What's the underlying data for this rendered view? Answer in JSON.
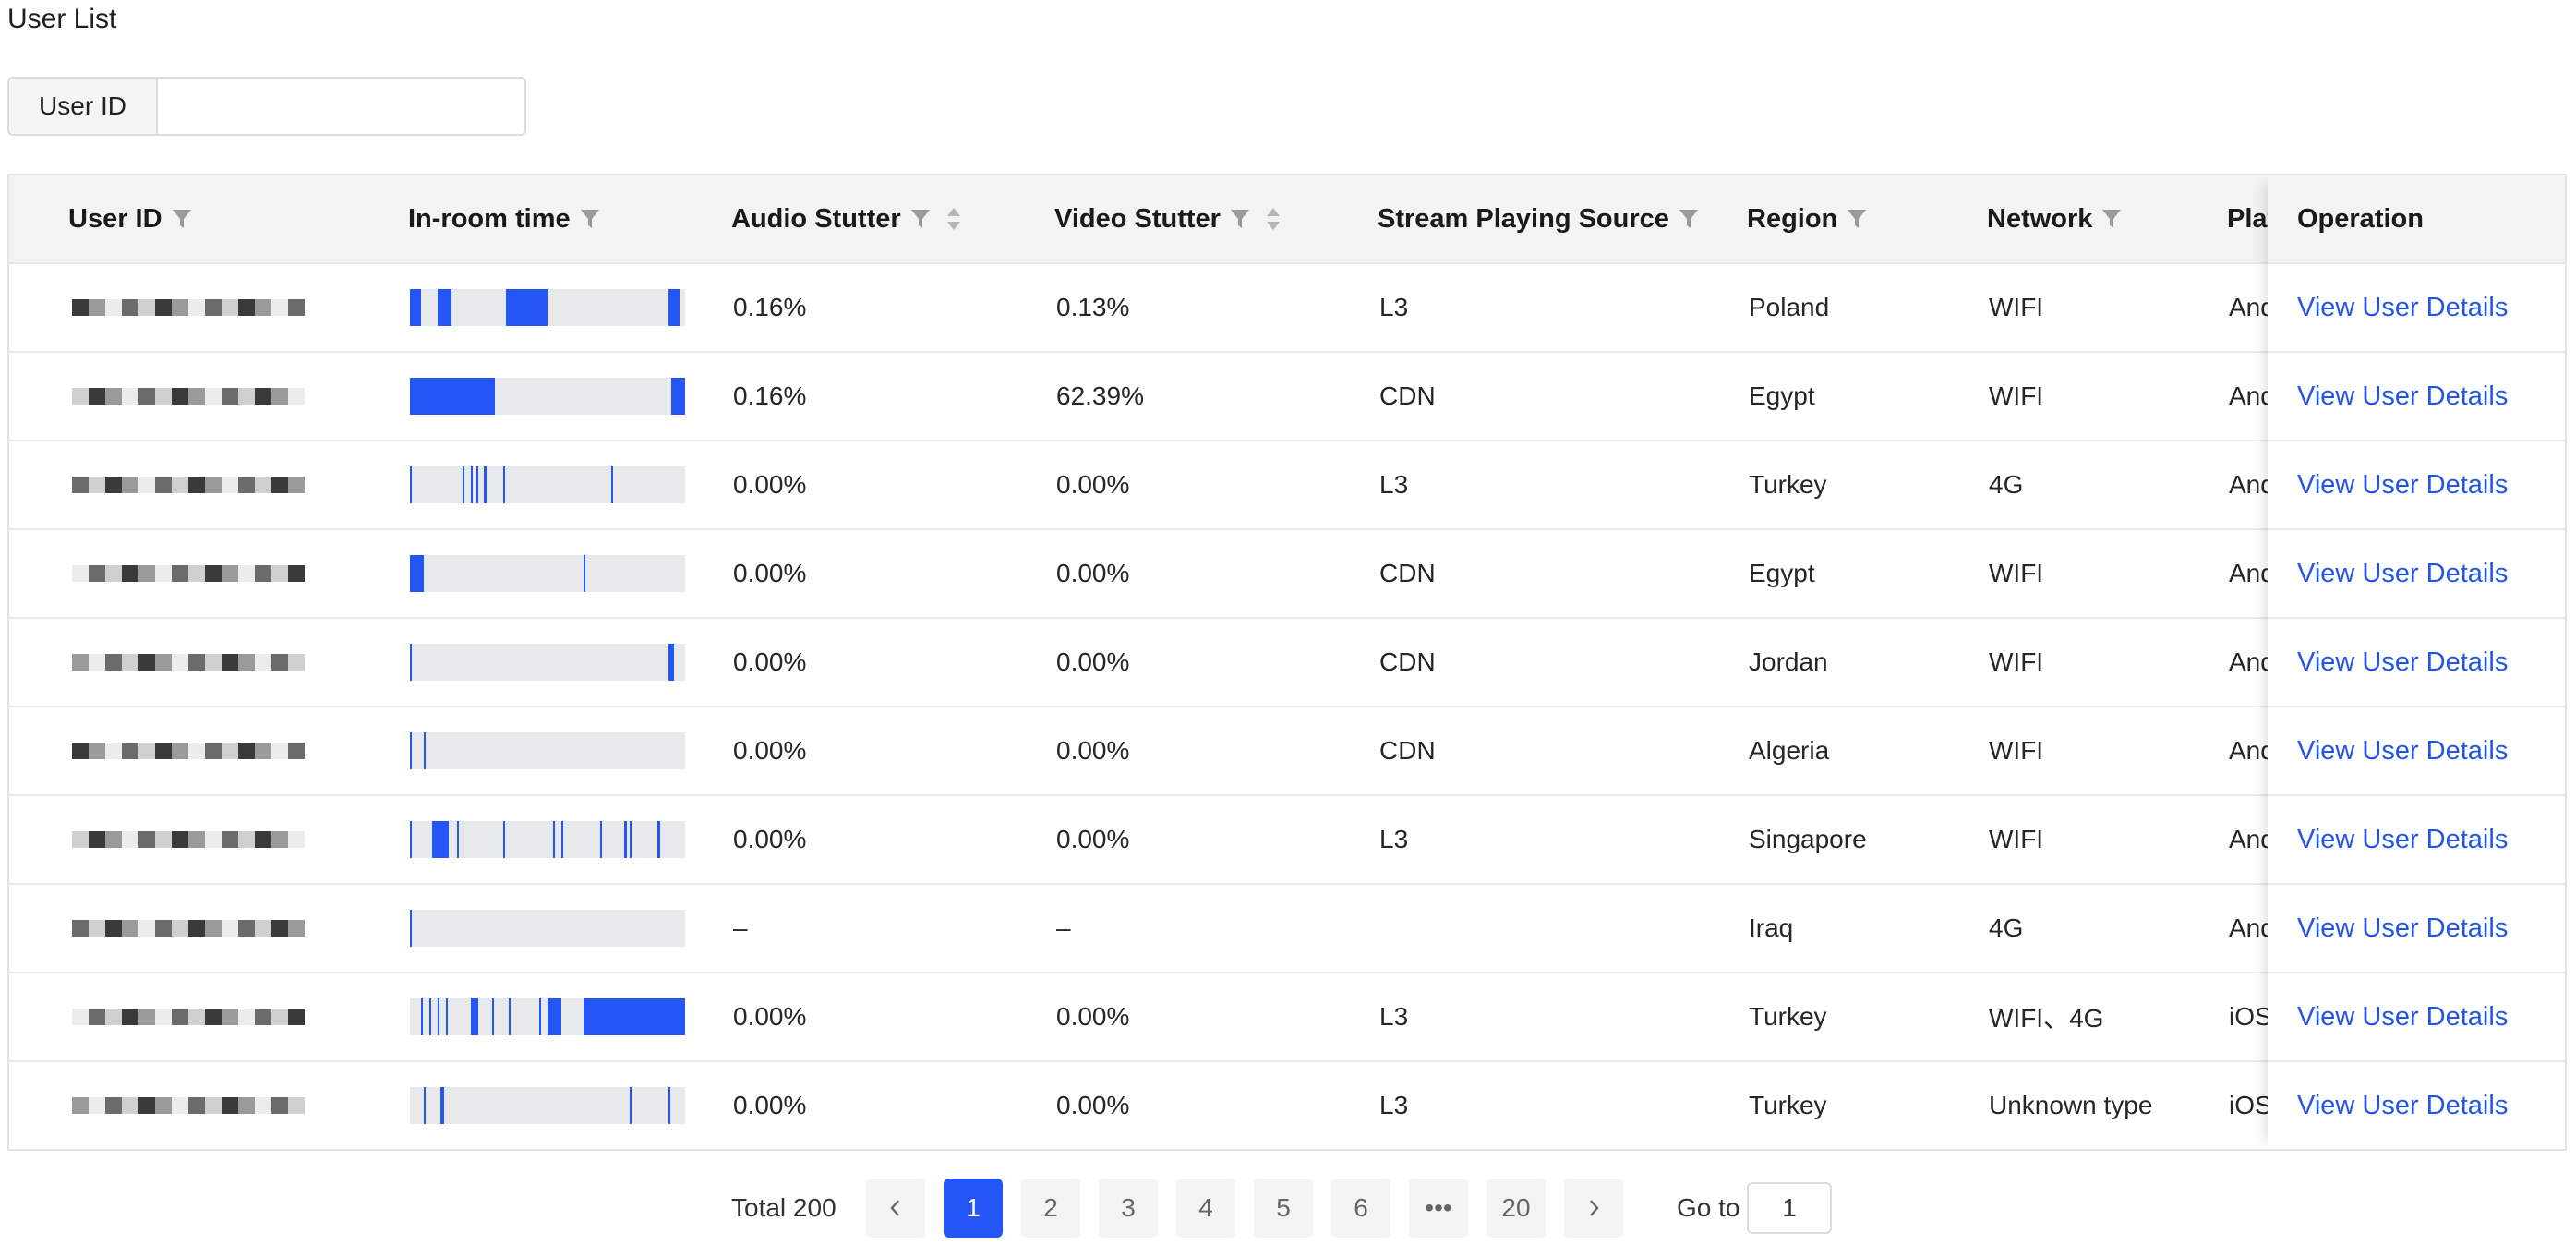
{
  "page_title": "User List",
  "search": {
    "label": "User ID",
    "value": ""
  },
  "table": {
    "columns": {
      "user_id": "User ID",
      "in_room_time": "In-room time",
      "audio_stutter": "Audio Stutter",
      "video_stutter": "Video Stutter",
      "stream_source": "Stream Playing Source",
      "region": "Region",
      "network": "Network",
      "platform": "Platform",
      "operation": "Operation"
    },
    "rows": [
      {
        "audio": "0.16%",
        "video": "0.13%",
        "source": "L3",
        "region": "Poland",
        "network": "WIFI",
        "platform": "Android",
        "action": "View User Details",
        "timeline": [
          [
            0,
            0.04
          ],
          [
            0.1,
            0.15
          ],
          [
            0.35,
            0.5
          ],
          [
            0.94,
            0.98
          ]
        ]
      },
      {
        "audio": "0.16%",
        "video": "62.39%",
        "source": "CDN",
        "region": "Egypt",
        "network": "WIFI",
        "platform": "Android",
        "action": "View User Details",
        "timeline": [
          [
            0,
            0.31
          ],
          [
            0.95,
            1.0
          ]
        ]
      },
      {
        "audio": "0.00%",
        "video": "0.00%",
        "source": "L3",
        "region": "Turkey",
        "network": "4G",
        "platform": "Android",
        "action": "View User Details",
        "timeline": [
          [
            0,
            0.006
          ],
          [
            0.19,
            0.197
          ],
          [
            0.22,
            0.227
          ],
          [
            0.24,
            0.247
          ],
          [
            0.27,
            0.277
          ],
          [
            0.34,
            0.347
          ],
          [
            0.73,
            0.737
          ]
        ]
      },
      {
        "audio": "0.00%",
        "video": "0.00%",
        "source": "CDN",
        "region": "Egypt",
        "network": "WIFI",
        "platform": "Android",
        "action": "View User Details",
        "timeline": [
          [
            0,
            0.05
          ],
          [
            0.63,
            0.637
          ]
        ]
      },
      {
        "audio": "0.00%",
        "video": "0.00%",
        "source": "CDN",
        "region": "Jordan",
        "network": "WIFI",
        "platform": "Android",
        "action": "View User Details",
        "timeline": [
          [
            0,
            0.008
          ],
          [
            0.94,
            0.96
          ]
        ]
      },
      {
        "audio": "0.00%",
        "video": "0.00%",
        "source": "CDN",
        "region": "Algeria",
        "network": "WIFI",
        "platform": "Android",
        "action": "View User Details",
        "timeline": [
          [
            0,
            0.008
          ],
          [
            0.05,
            0.057
          ]
        ]
      },
      {
        "audio": "0.00%",
        "video": "0.00%",
        "source": "L3",
        "region": "Singapore",
        "network": "WIFI",
        "platform": "Android",
        "action": "View User Details",
        "timeline": [
          [
            0,
            0.008
          ],
          [
            0.08,
            0.14
          ],
          [
            0.17,
            0.177
          ],
          [
            0.34,
            0.347
          ],
          [
            0.52,
            0.527
          ],
          [
            0.55,
            0.557
          ],
          [
            0.69,
            0.697
          ],
          [
            0.78,
            0.787
          ],
          [
            0.8,
            0.807
          ],
          [
            0.9,
            0.91
          ]
        ]
      },
      {
        "audio": "–",
        "video": "–",
        "source": "",
        "region": "Iraq",
        "network": "4G",
        "platform": "Android",
        "action": "View User Details",
        "timeline": [
          [
            0,
            0.008
          ]
        ]
      },
      {
        "audio": "0.00%",
        "video": "0.00%",
        "source": "L3",
        "region": "Turkey",
        "network": "WIFI、4G",
        "platform": "iOS",
        "action": "View User Details",
        "timeline": [
          [
            0.04,
            0.047
          ],
          [
            0.07,
            0.077
          ],
          [
            0.1,
            0.107
          ],
          [
            0.13,
            0.137
          ],
          [
            0.22,
            0.25
          ],
          [
            0.3,
            0.307
          ],
          [
            0.36,
            0.367
          ],
          [
            0.47,
            0.477
          ],
          [
            0.5,
            0.55
          ],
          [
            0.63,
            1.0
          ]
        ]
      },
      {
        "audio": "0.00%",
        "video": "0.00%",
        "source": "L3",
        "region": "Turkey",
        "network": "Unknown type",
        "platform": "iOS",
        "action": "View User Details",
        "timeline": [
          [
            0.05,
            0.057
          ],
          [
            0.11,
            0.125
          ],
          [
            0.8,
            0.807
          ],
          [
            0.94,
            0.947
          ]
        ]
      }
    ]
  },
  "pagination": {
    "total": "Total 200",
    "pages": [
      "1",
      "2",
      "3",
      "4",
      "5",
      "6",
      "•••",
      "20"
    ],
    "active": "1",
    "goto_label": "Go to",
    "goto_value": "1"
  }
}
